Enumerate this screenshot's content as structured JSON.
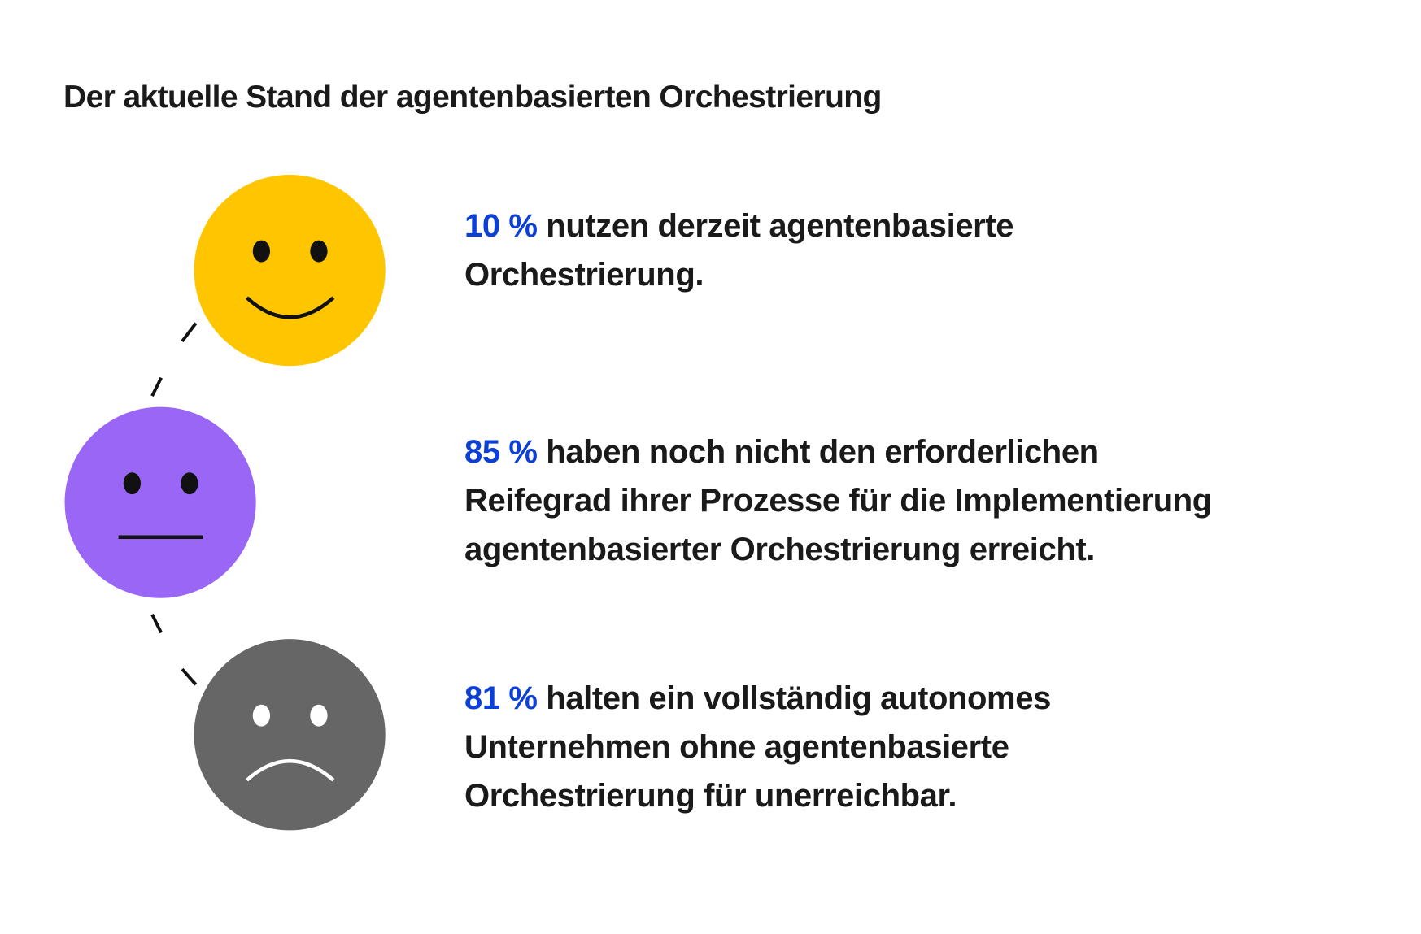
{
  "title": "Der aktuelle Stand der agentenbasierten Orchestrierung",
  "colors": {
    "accent": "#0b3fd6",
    "happy": "#ffc600",
    "neutral": "#9966f6",
    "sad": "#666666"
  },
  "stats": [
    {
      "face": "happy-face-icon",
      "percent": "10 %",
      "lines": [
        "nutzen derzeit agentenbasierte",
        "Orchestrierung."
      ]
    },
    {
      "face": "neutral-face-icon",
      "percent": "85 %",
      "lines": [
        "haben noch nicht den erforderlichen",
        "Reifegrad ihrer Prozesse für die Implementierung",
        "agentenbasierter Orchestrierung erreicht."
      ]
    },
    {
      "face": "sad-face-icon",
      "percent": "81 %",
      "lines": [
        "halten ein vollständig autonomes",
        "Unternehmen ohne agentenbasierte",
        "Orchestrierung für unerreichbar."
      ]
    }
  ]
}
